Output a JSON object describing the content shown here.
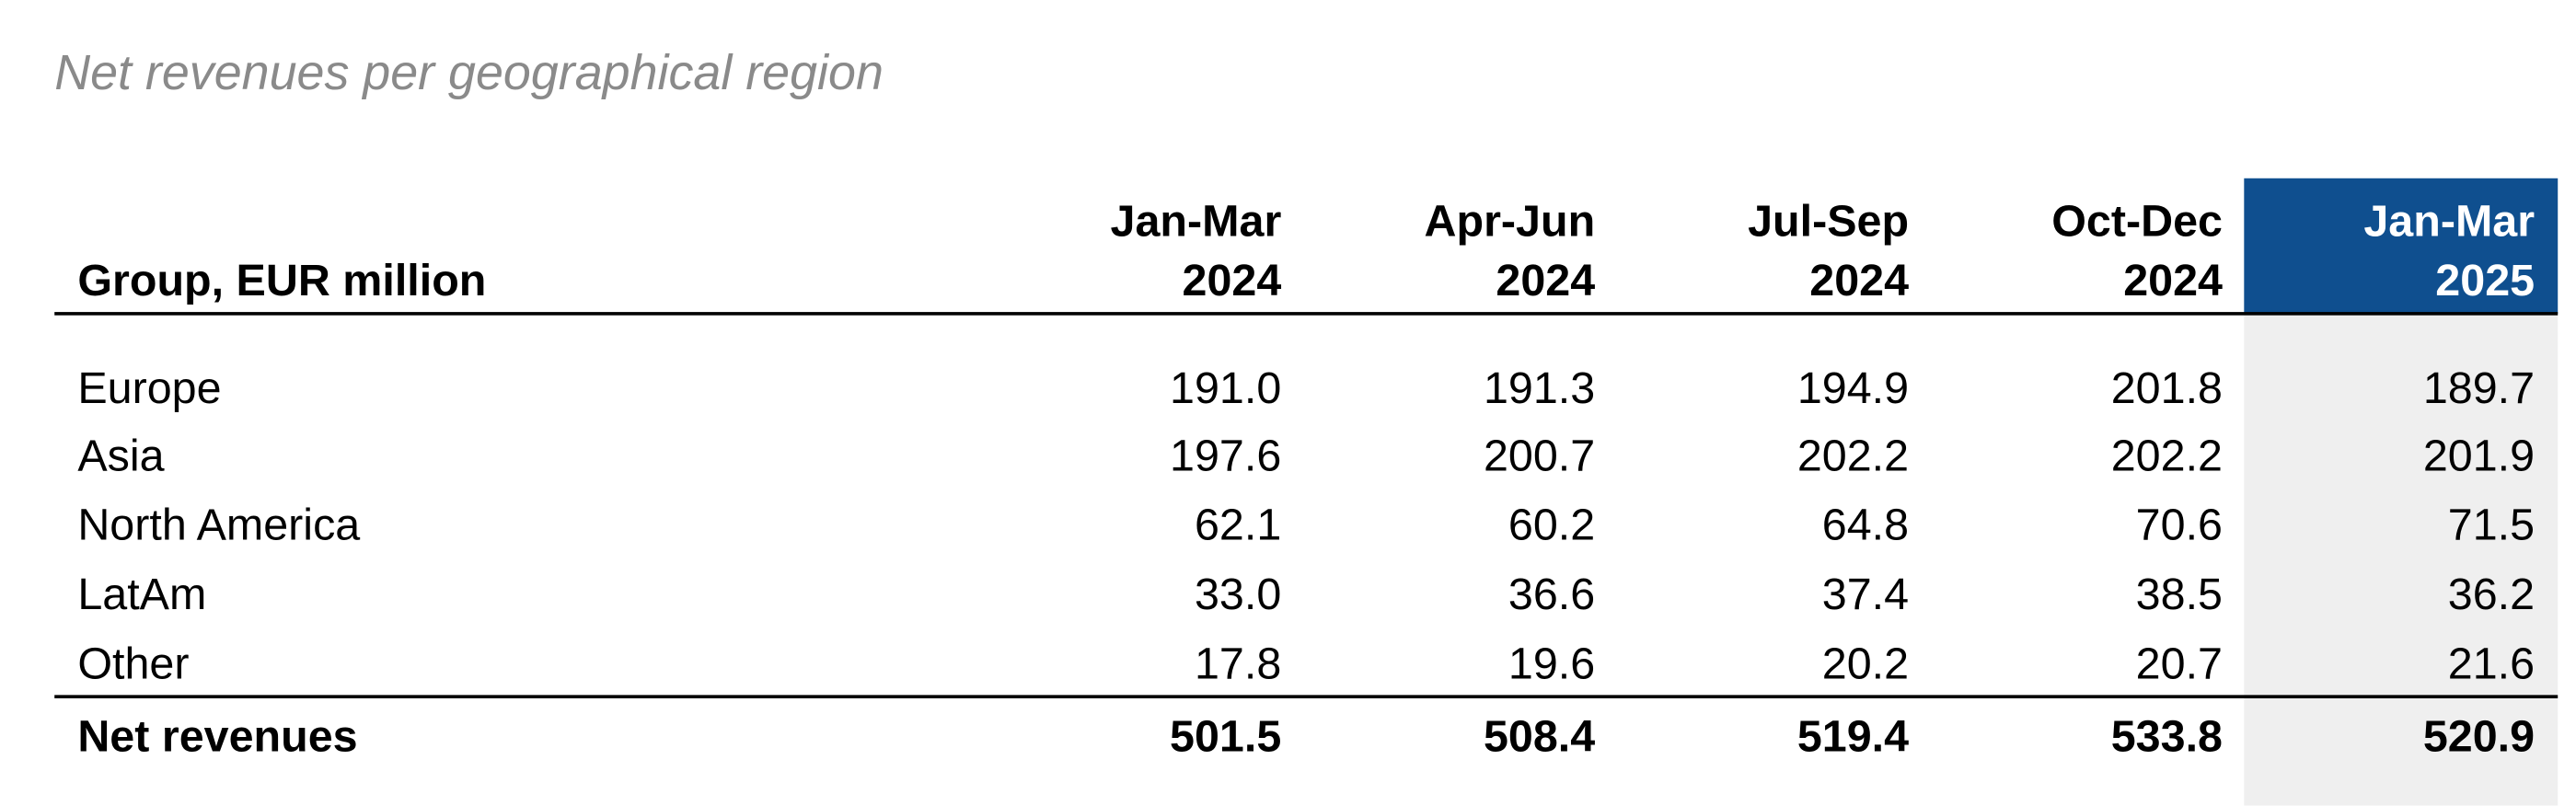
{
  "title": "Net revenues per geographical region",
  "table": {
    "corner": "Group, EUR million",
    "columns": [
      {
        "period": "Jan-Mar",
        "year": "2024"
      },
      {
        "period": "Apr-Jun",
        "year": "2024"
      },
      {
        "period": "Jul-Sep",
        "year": "2024"
      },
      {
        "period": "Oct-Dec",
        "year": "2024"
      },
      {
        "period": "Jan-Mar",
        "year": "2025"
      }
    ],
    "rows": [
      {
        "label": "Europe",
        "values": [
          "191.0",
          "191.3",
          "194.9",
          "201.8",
          "189.7"
        ]
      },
      {
        "label": "Asia",
        "values": [
          "197.6",
          "200.7",
          "202.2",
          "202.2",
          "201.9"
        ]
      },
      {
        "label": "North America",
        "values": [
          "62.1",
          "60.2",
          "64.8",
          "70.6",
          "71.5"
        ]
      },
      {
        "label": "LatAm",
        "values": [
          "33.0",
          "36.6",
          "37.4",
          "38.5",
          "36.2"
        ]
      },
      {
        "label": "Other",
        "values": [
          "17.8",
          "19.6",
          "20.2",
          "20.7",
          "21.6"
        ]
      }
    ],
    "total": {
      "label": "Net revenues",
      "values": [
        "501.5",
        "508.4",
        "519.4",
        "533.8",
        "520.9"
      ]
    }
  }
}
